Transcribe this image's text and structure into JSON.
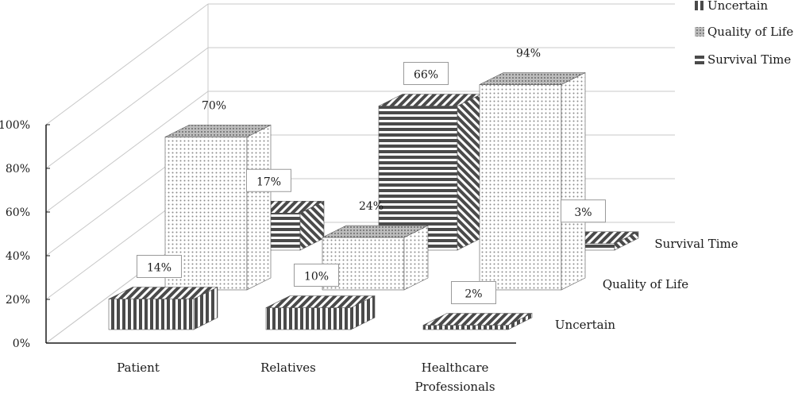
{
  "chart_data": {
    "type": "bar",
    "three_d": true,
    "categories": [
      "Patient",
      "Relatives",
      "Healthcare Professionals"
    ],
    "series": [
      {
        "name": "Uncertain",
        "values": [
          14,
          10,
          2
        ],
        "labels": [
          "14%",
          "10%",
          "2%"
        ],
        "pattern": "vertical-stripes"
      },
      {
        "name": "Quality of Life",
        "values": [
          70,
          24,
          94
        ],
        "labels": [
          "70%",
          "24%",
          "94%"
        ],
        "pattern": "dots"
      },
      {
        "name": "Survival Time",
        "values": [
          17,
          66,
          3
        ],
        "labels": [
          "17%",
          "66%",
          "3%"
        ],
        "pattern": "horizontal-stripes"
      }
    ],
    "y_ticks": [
      "0%",
      "20%",
      "40%",
      "60%",
      "80%",
      "100%"
    ],
    "ylim": [
      0,
      100
    ],
    "depth_labels": [
      "Uncertain",
      "Quality of Life",
      "Survival Time"
    ],
    "legend": {
      "position": "top-right",
      "entries": [
        "Uncertain",
        "Quality of Life",
        "Survival Time"
      ]
    },
    "grid": true,
    "colors": {
      "bar_dark": "#4a4a4a",
      "bar_light": "#ffffff",
      "axis": "#1a1a1a",
      "grid": "#c8c8c8"
    }
  }
}
